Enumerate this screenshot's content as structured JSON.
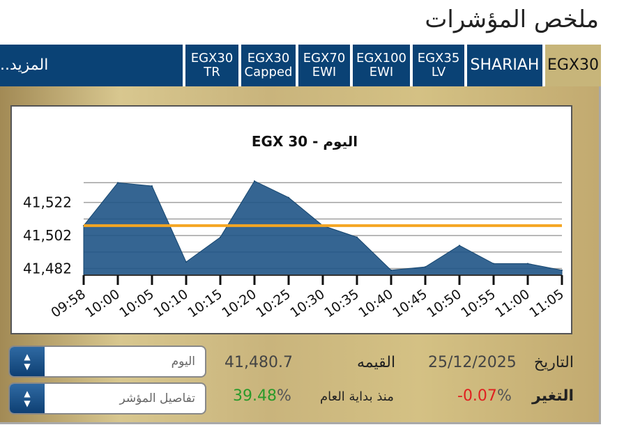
{
  "page": {
    "title": "ملخص المؤشرات"
  },
  "tabs": {
    "more": "المزيد..",
    "items": [
      {
        "line1": "EGX30",
        "line2": "TR"
      },
      {
        "line1": "EGX30",
        "line2": "Capped"
      },
      {
        "line1": "EGX70",
        "line2": "EWI"
      },
      {
        "line1": "EGX100",
        "line2": "EWI"
      },
      {
        "line1": "EGX35",
        "line2": "LV"
      },
      {
        "line1": "SHARIAH",
        "line2": ""
      },
      {
        "line1": "EGX30",
        "line2": ""
      }
    ],
    "active_index": 6
  },
  "chart_data": {
    "type": "area",
    "title": "EGX 30 - اليوم",
    "x": [
      "09:58",
      "10:00",
      "10:05",
      "10:10",
      "10:15",
      "10:20",
      "10:25",
      "10:30",
      "10:35",
      "10:40",
      "10:45",
      "10:50",
      "10:55",
      "11:00",
      "11:05"
    ],
    "series": [
      {
        "values": [
          41508,
          41534,
          41532,
          41486,
          41501,
          41535,
          41525,
          41508,
          41501,
          41481,
          41483,
          41496,
          41485,
          41485,
          41481
        ]
      }
    ],
    "reference_line": 41508,
    "yticks": [
      "41,522",
      "41,502",
      "41,482"
    ],
    "ytick_values": [
      41522,
      41502,
      41482
    ],
    "ylim": [
      41478,
      41540
    ],
    "area_color": "#1f5486",
    "reference_color": "#f5a623",
    "grid": true
  },
  "controls": {
    "period_select": "اليوم",
    "detail_select": "تفاصيل المؤشر"
  },
  "info": {
    "date_label": "التاريخ",
    "date_value": "25/12/2025",
    "value_label": "القيمه",
    "value_value": "41,480.7",
    "change_label": "التغير",
    "change_value": "-0.07",
    "change_pct": "%",
    "ytd_label": "منذ بداية العام",
    "ytd_value": "39.48",
    "ytd_pct": "%"
  },
  "colors": {
    "negative": "#e02020",
    "positive": "#2a9a2a",
    "neutral": "#444444"
  }
}
